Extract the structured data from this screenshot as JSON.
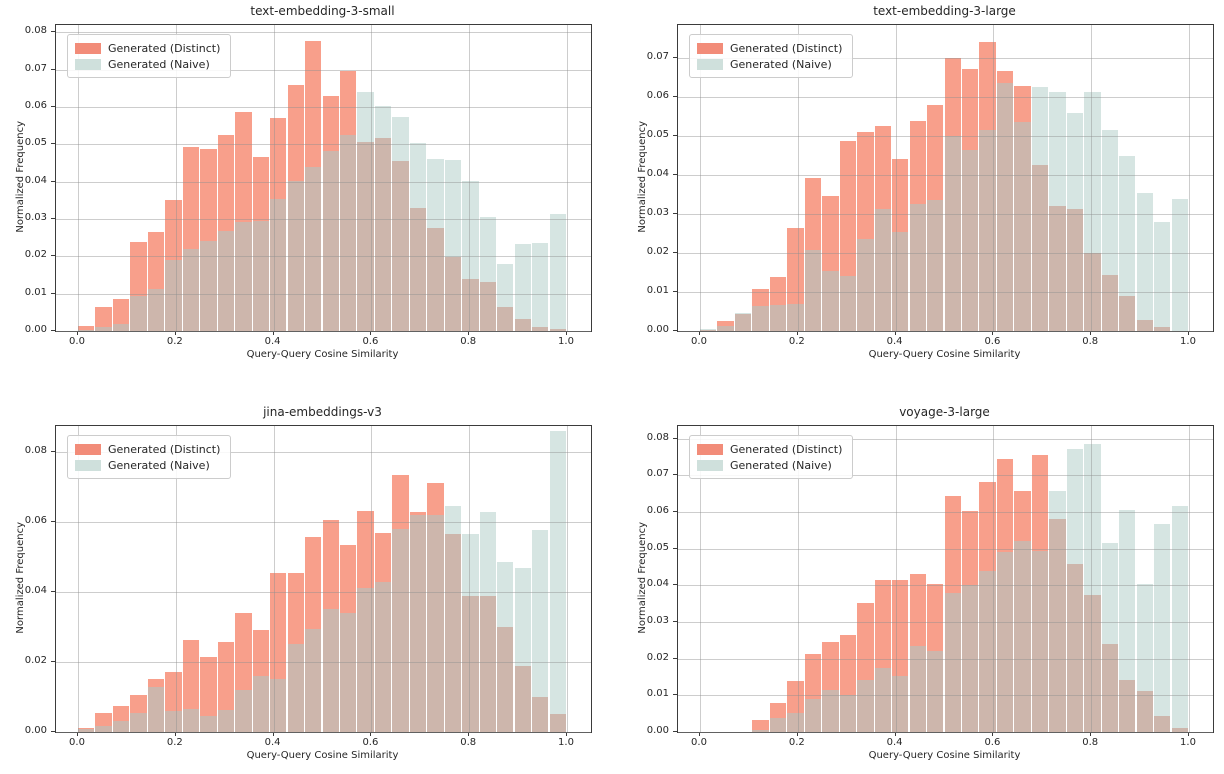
{
  "figure_background": "#ffffff",
  "colors": {
    "distinct_fill": "#F89F8B",
    "naive_fill": "#D6E5E2",
    "overlap_fill": "#CDB6AC",
    "legend_distinct": "#F28C79",
    "legend_naive": "#CFE0DC",
    "grid": "#909090",
    "frame": "#3b3b3b",
    "text": "#262626"
  },
  "legend": {
    "distinct_label": "Generated (Distinct)",
    "naive_label": "Generated (Naive)"
  },
  "chart_data": [
    {
      "type": "bar",
      "subtype": "overlaid-histogram",
      "title": "text-embedding-3-small",
      "xlabel": "Query-Query Cosine Similarity",
      "ylabel": "Normalized Frequency",
      "x_range": [
        0.0,
        1.0
      ],
      "bins": 28,
      "ylim": [
        0,
        0.082
      ],
      "grid": true,
      "legend_position": "upper left",
      "x_ticks": [
        "0.0",
        "0.2",
        "0.4",
        "0.6",
        "0.8",
        "1.0"
      ],
      "y_ticks": [
        "0.00",
        "0.01",
        "0.02",
        "0.03",
        "0.04",
        "0.05",
        "0.06",
        "0.07",
        "0.08"
      ],
      "series": [
        {
          "name": "Generated (Distinct)",
          "values": [
            0.0013,
            0.0065,
            0.0085,
            0.0238,
            0.0265,
            0.0352,
            0.0492,
            0.0487,
            0.0525,
            0.0586,
            0.0467,
            0.0572,
            0.0658,
            0.0778,
            0.063,
            0.0698,
            0.0507,
            0.0518,
            0.0456,
            0.033,
            0.0276,
            0.0197,
            0.0139,
            0.0132,
            0.0063,
            0.0031,
            0.0012,
            0.0005
          ]
        },
        {
          "name": "Generated (Naive)",
          "values": [
            0.0003,
            0.001,
            0.002,
            0.0095,
            0.0113,
            0.019,
            0.022,
            0.024,
            0.0267,
            0.0292,
            0.0295,
            0.0353,
            0.0403,
            0.044,
            0.0483,
            0.0525,
            0.064,
            0.0604,
            0.0573,
            0.0505,
            0.046,
            0.0457,
            0.0403,
            0.0305,
            0.018,
            0.0233,
            0.0237,
            0.0313
          ]
        }
      ]
    },
    {
      "type": "bar",
      "subtype": "overlaid-histogram",
      "title": "text-embedding-3-large",
      "xlabel": "Query-Query Cosine Similarity",
      "ylabel": "Normalized Frequency",
      "x_range": [
        0.0,
        1.0
      ],
      "bins": 28,
      "ylim": [
        0,
        0.0785
      ],
      "grid": true,
      "legend_position": "upper left",
      "x_ticks": [
        "0.0",
        "0.2",
        "0.4",
        "0.6",
        "0.8",
        "1.0"
      ],
      "y_ticks": [
        "0.00",
        "0.01",
        "0.02",
        "0.03",
        "0.04",
        "0.05",
        "0.06",
        "0.07"
      ],
      "series": [
        {
          "name": "Generated (Distinct)",
          "values": [
            0.0002,
            0.0026,
            0.0046,
            0.0107,
            0.0138,
            0.0265,
            0.0393,
            0.0347,
            0.0487,
            0.0511,
            0.0525,
            0.044,
            0.054,
            0.058,
            0.07,
            0.0673,
            0.0742,
            0.0667,
            0.0629,
            0.0426,
            0.032,
            0.0313,
            0.0199,
            0.0144,
            0.0089,
            0.0029,
            0.001,
            0.0
          ]
        },
        {
          "name": "Generated (Naive)",
          "values": [
            0.0006,
            0.0012,
            0.0047,
            0.0065,
            0.0067,
            0.0068,
            0.0208,
            0.0155,
            0.014,
            0.0235,
            0.0313,
            0.0253,
            0.0325,
            0.0335,
            0.0499,
            0.0464,
            0.0515,
            0.0635,
            0.0535,
            0.0625,
            0.0613,
            0.0559,
            0.0613,
            0.0515,
            0.0448,
            0.0353,
            0.028,
            0.0338
          ]
        }
      ]
    },
    {
      "type": "bar",
      "subtype": "overlaid-histogram",
      "title": "jina-embeddings-v3",
      "xlabel": "Query-Query Cosine Similarity",
      "ylabel": "Normalized Frequency",
      "x_range": [
        0.0,
        1.0
      ],
      "bins": 28,
      "ylim": [
        0,
        0.0875
      ],
      "grid": true,
      "legend_position": "upper left",
      "x_ticks": [
        "0.0",
        "0.2",
        "0.4",
        "0.6",
        "0.8",
        "1.0"
      ],
      "y_ticks": [
        "0.00",
        "0.02",
        "0.04",
        "0.06",
        "0.08"
      ],
      "series": [
        {
          "name": "Generated (Distinct)",
          "values": [
            0.0012,
            0.0053,
            0.0075,
            0.0107,
            0.0151,
            0.0173,
            0.0264,
            0.0214,
            0.0257,
            0.034,
            0.0292,
            0.0455,
            0.0455,
            0.0557,
            0.0605,
            0.0536,
            0.0631,
            0.0568,
            0.0735,
            0.063,
            0.0712,
            0.0565,
            0.0388,
            0.0388,
            0.03,
            0.0188,
            0.0101,
            0.0051
          ]
        },
        {
          "name": "Generated (Naive)",
          "values": [
            0.0008,
            0.0016,
            0.0031,
            0.0054,
            0.0128,
            0.0059,
            0.0065,
            0.0047,
            0.0062,
            0.0119,
            0.0159,
            0.0152,
            0.0252,
            0.0295,
            0.0353,
            0.0341,
            0.0411,
            0.043,
            0.0581,
            0.0621,
            0.0621,
            0.0645,
            0.0565,
            0.063,
            0.0485,
            0.047,
            0.0578,
            0.086
          ]
        }
      ]
    },
    {
      "type": "bar",
      "subtype": "overlaid-histogram",
      "title": "voyage-3-large",
      "xlabel": "Query-Query Cosine Similarity",
      "ylabel": "Normalized Frequency",
      "x_range": [
        0.0,
        1.0
      ],
      "bins": 28,
      "ylim": [
        0,
        0.0835
      ],
      "grid": true,
      "legend_position": "upper left",
      "x_ticks": [
        "0.0",
        "0.2",
        "0.4",
        "0.6",
        "0.8",
        "1.0"
      ],
      "y_ticks": [
        "0.00",
        "0.01",
        "0.02",
        "0.03",
        "0.04",
        "0.05",
        "0.06",
        "0.07",
        "0.08"
      ],
      "series": [
        {
          "name": "Generated (Distinct)",
          "values": [
            0.0,
            0.0,
            0.0,
            0.0034,
            0.0079,
            0.0139,
            0.0212,
            0.0245,
            0.0264,
            0.0352,
            0.0416,
            0.0415,
            0.0432,
            0.0403,
            0.0644,
            0.0603,
            0.0682,
            0.0745,
            0.0659,
            0.0757,
            0.058,
            0.0459,
            0.0375,
            0.0239,
            0.0141,
            0.0112,
            0.0045,
            0.0012
          ]
        },
        {
          "name": "Generated (Naive)",
          "values": [
            0.0,
            0.0,
            0.0,
            0.0005,
            0.0037,
            0.0053,
            0.0089,
            0.0114,
            0.0102,
            0.0141,
            0.0174,
            0.0153,
            0.0235,
            0.0221,
            0.038,
            0.04,
            0.0439,
            0.0492,
            0.0521,
            0.0495,
            0.0659,
            0.0771,
            0.0785,
            0.0516,
            0.0607,
            0.0405,
            0.0568,
            0.0616
          ]
        }
      ]
    }
  ]
}
